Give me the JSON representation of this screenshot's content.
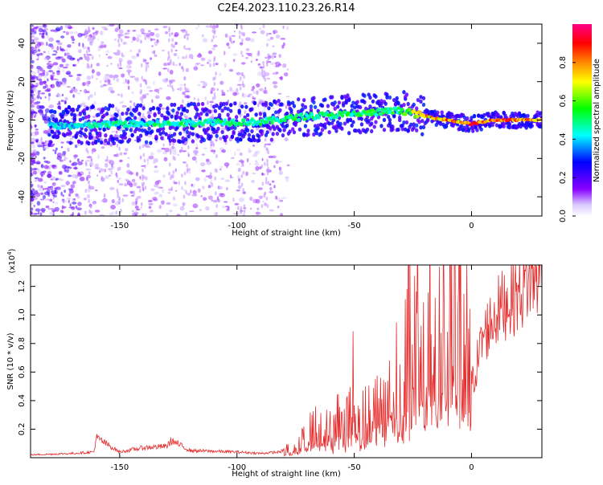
{
  "title": "C2E4.2023.110.23.26.R14",
  "colors": {
    "snr_line": "#e52b2b",
    "axis": "#000000",
    "background": "#ffffff"
  },
  "chart_data": [
    {
      "type": "heatmap",
      "ylabel": "Frequency (Hz)",
      "xlabel": "Height of straight line (km)",
      "x_ticks": [
        "-150",
        "-100",
        "-50",
        "0"
      ],
      "y_ticks": [
        "-40",
        "-20",
        "0",
        "20",
        "40"
      ],
      "xlim": [
        -188,
        30
      ],
      "ylim": [
        -50,
        50
      ],
      "colorbar": {
        "label": "Normalized spectral amplitude",
        "ticks": [
          "0.0",
          "0.2",
          "0.4",
          "0.6",
          "0.8"
        ],
        "range": [
          0,
          1
        ],
        "colors": [
          "#ffffff",
          "#8800ff",
          "#0000ff",
          "#00ffff",
          "#00ff00",
          "#ffff00",
          "#ff8800",
          "#ff0000",
          "#ff0088"
        ]
      },
      "signal_track": [
        {
          "x": -180,
          "f": -3,
          "amp": 0.45
        },
        {
          "x": -165,
          "f": -3,
          "amp": 0.5
        },
        {
          "x": -150,
          "f": -2,
          "amp": 0.55
        },
        {
          "x": -130,
          "f": -2,
          "amp": 0.55
        },
        {
          "x": -110,
          "f": -1,
          "amp": 0.55
        },
        {
          "x": -90,
          "f": -1,
          "amp": 0.55
        },
        {
          "x": -70,
          "f": 2,
          "amp": 0.6
        },
        {
          "x": -50,
          "f": 3,
          "amp": 0.6
        },
        {
          "x": -30,
          "f": 5,
          "amp": 0.6
        },
        {
          "x": -20,
          "f": 2,
          "amp": 0.85
        },
        {
          "x": -10,
          "f": 0,
          "amp": 0.9
        },
        {
          "x": 0,
          "f": -2,
          "amp": 0.95
        },
        {
          "x": 10,
          "f": 0,
          "amp": 0.95
        },
        {
          "x": 30,
          "f": 0,
          "amp": 0.95
        }
      ]
    },
    {
      "type": "line",
      "ylabel": "SNR (10 * v/v)",
      "y_multiplier": "(x10",
      "y_multiplier_exp": "4",
      "xlabel": "Height of straight line (km)",
      "x_ticks": [
        "-150",
        "-100",
        "-50",
        "0"
      ],
      "y_ticks": [
        "0.2",
        "0.4",
        "0.6",
        "0.8",
        "1.0",
        "1.2"
      ],
      "xlim": [
        -188,
        30
      ],
      "ylim": [
        0,
        1.35
      ],
      "series": [
        {
          "x": [
            -188,
            -170,
            -161,
            -160,
            -150,
            -140,
            -130,
            -128,
            -120,
            -100,
            -90,
            -82,
            -75,
            -70,
            -65,
            -60,
            -55,
            -52,
            -50,
            -48,
            -45,
            -40,
            -35,
            -30,
            -25,
            -20,
            -17,
            -15,
            -12,
            -10,
            -5,
            -3,
            0,
            5,
            10,
            15,
            20,
            25,
            30
          ],
          "y": [
            0.02,
            0.03,
            0.04,
            0.14,
            0.04,
            0.07,
            0.08,
            0.12,
            0.05,
            0.04,
            0.03,
            0.04,
            0.08,
            0.16,
            0.22,
            0.18,
            0.35,
            0.25,
            0.62,
            0.3,
            0.28,
            0.42,
            0.55,
            0.55,
            0.95,
            0.7,
            1.35,
            0.6,
            1.0,
            0.85,
            1.1,
            0.85,
            0.5,
            0.85,
            1.0,
            1.1,
            1.15,
            1.25,
            1.3
          ]
        }
      ]
    }
  ]
}
